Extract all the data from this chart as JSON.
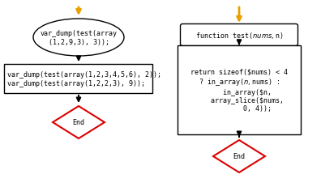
{
  "arrow_color": "#E8A000",
  "arrow_black": "#000000",
  "box_edge_color": "#000000",
  "box_face_color": "#ffffff",
  "end_diamond_edge": "#dd0000",
  "end_diamond_face": "#ffffff",
  "ellipse_edge": "#000000",
  "ellipse_face": "#ffffff",
  "rounded_rect_edge": "#000000",
  "rounded_rect_face": "#ffffff",
  "left_ellipse_text": "var_dump(test(array\n(1,2,9,3), 3));",
  "left_rect_text": "var_dump(test(array(1,2,3,4,5,6), 2));\nvar_dump(test(array(1,2,2,3), 9));",
  "left_end_text": "End",
  "right_rounded_text": "function test($nums, $n)",
  "right_rect_text": "return sizeof($nums) < 4\n? in_array($n, $nums) :\n    in_array($n,\n    array_slice($nums,\n         0, 4));",
  "right_end_text": "End",
  "font_size": 6.0,
  "font_family": "DejaVu Sans Mono"
}
